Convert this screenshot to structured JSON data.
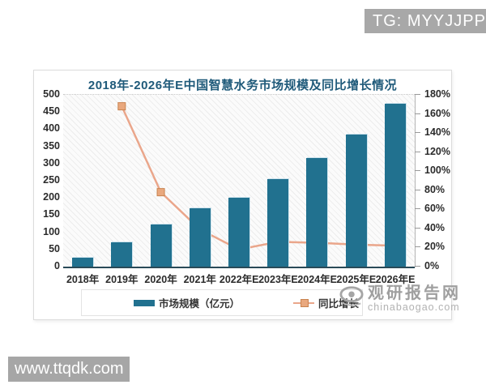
{
  "watermarks": {
    "tg_banner": "TG: MYYJJPP",
    "site_url": "www.ttqdk.com",
    "brand_name": "观研报告网",
    "brand_domain": "chinabaogao.com"
  },
  "chart_data": {
    "type": "bar+line combo",
    "title": "2018年-2026年E中国智慧水务市场规模及同比增长情况",
    "categories": [
      "2018年",
      "2019年",
      "2020年",
      "2021年",
      "2022年E",
      "2023年E",
      "2024年E",
      "2025年E",
      "2026年E"
    ],
    "series": [
      {
        "name": "市场规模（亿元）",
        "type": "bar",
        "axis": "left",
        "values": [
          25,
          70,
          123,
          171,
          200,
          255,
          315,
          385,
          475
        ]
      },
      {
        "name": "同比增长",
        "type": "line",
        "axis": "right",
        "values_pct": [
          null,
          168,
          78,
          39,
          18,
          26,
          25,
          23,
          22
        ]
      }
    ],
    "left_axis": {
      "min": 0,
      "max": 500,
      "tick_labels": [
        "0",
        "50",
        "100",
        "150",
        "200",
        "250",
        "300",
        "350",
        "400",
        "450",
        "500"
      ]
    },
    "right_axis": {
      "min": 0,
      "max": 180,
      "tick_labels": [
        "0%",
        "20%",
        "40%",
        "60%",
        "80%",
        "100%",
        "120%",
        "140%",
        "160%",
        "180%"
      ]
    },
    "legend_position": "bottom",
    "grid": "top dotted line only, hatched plot background",
    "colors": {
      "bar": "#21718f",
      "line": "#eaa68b",
      "marker_fill": "#e9a87e",
      "marker_border": "#c9834f",
      "title": "#1f5a7a"
    }
  }
}
